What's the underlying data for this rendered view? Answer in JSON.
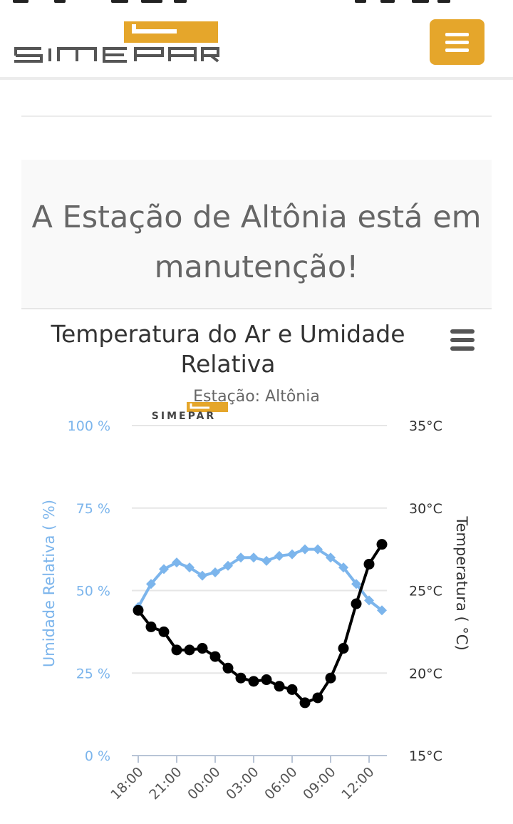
{
  "header": {
    "logo_text": "SIMEPAR",
    "menu_icon": "hamburger-icon",
    "brand_color": "#e5a62b"
  },
  "notice": {
    "text": "A Estação de Altônia está em manutenção!"
  },
  "chart_data": {
    "type": "line",
    "title": "Temperatura do Ar e Umidade Relativa",
    "subtitle": "Estação: Altônia",
    "watermark": "SIMEPAR",
    "menu_icon": "hamburger-icon",
    "x": [
      "18:00",
      "19:00",
      "20:00",
      "21:00",
      "22:00",
      "23:00",
      "00:00",
      "01:00",
      "02:00",
      "03:00",
      "04:00",
      "05:00",
      "06:00",
      "07:00",
      "08:00",
      "09:00",
      "10:00",
      "11:00",
      "12:00",
      "13:00"
    ],
    "x_tick_labels": [
      "18:00",
      "21:00",
      "00:00",
      "03:00",
      "06:00",
      "09:00",
      "12:00"
    ],
    "left_axis": {
      "label": "Umidade Relativa ( %)",
      "ticks": [
        "0 %",
        "25 %",
        "50 %",
        "75 %",
        "100 %"
      ],
      "range": [
        0,
        100
      ],
      "color": "#7cb5ec"
    },
    "right_axis": {
      "label": "Temperatura ( °C)",
      "ticks": [
        "15°C",
        "20°C",
        "25°C",
        "30°C",
        "35°C"
      ],
      "range": [
        15,
        35
      ],
      "color": "#222222"
    },
    "grid": true,
    "series": [
      {
        "name": "Umidade Relativa",
        "axis": "left",
        "color": "#7cb5ec",
        "marker": "diamond",
        "values": [
          45,
          52,
          56.5,
          58.5,
          57,
          54.5,
          55.5,
          57.5,
          60,
          60,
          59,
          60.5,
          61,
          62.5,
          62.5,
          60,
          57,
          52,
          47,
          44
        ]
      },
      {
        "name": "Temperatura",
        "axis": "right",
        "color": "#000000",
        "marker": "circle",
        "values": [
          23.8,
          22.8,
          22.5,
          21.4,
          21.4,
          21.5,
          21,
          20.3,
          19.7,
          19.5,
          19.6,
          19.2,
          19,
          18.2,
          18.5,
          19.7,
          21.5,
          24.2,
          26.6,
          27.8
        ]
      }
    ]
  }
}
